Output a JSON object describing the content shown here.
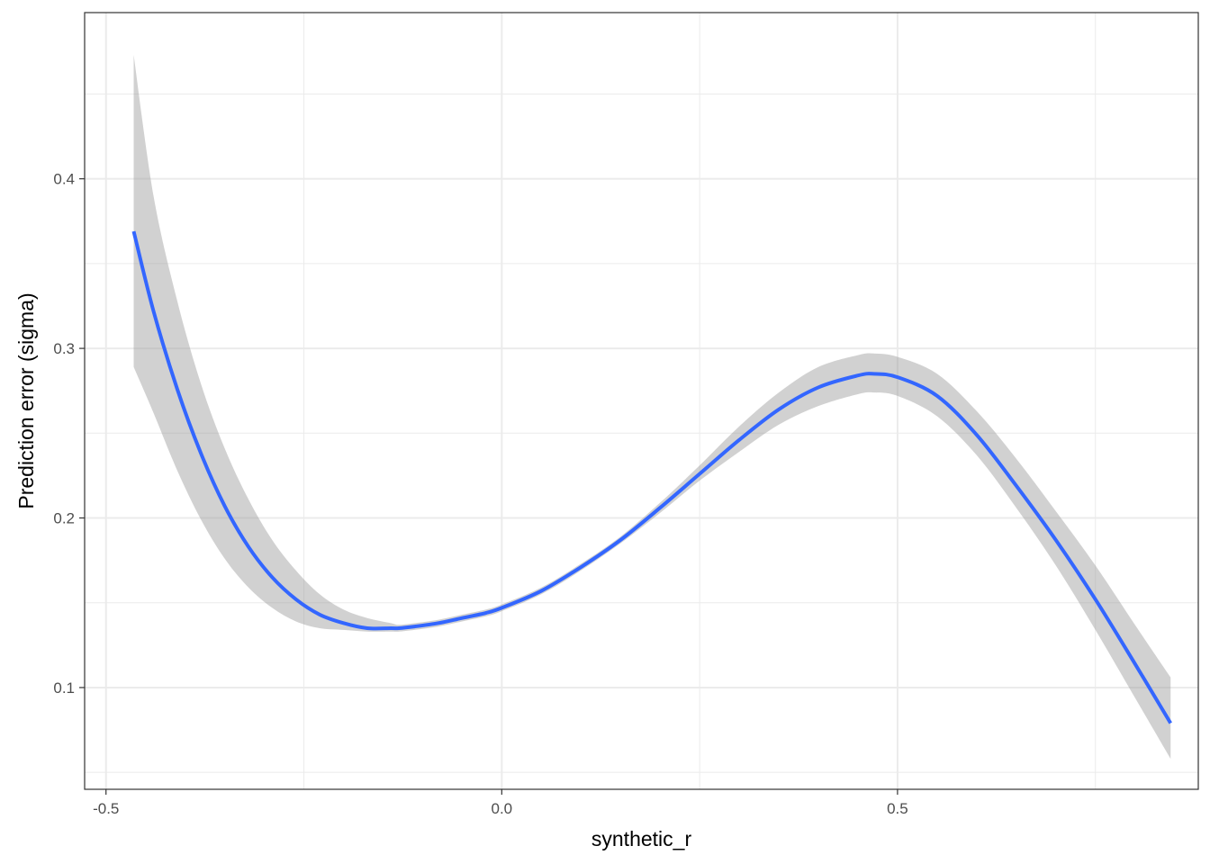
{
  "chart_data": {
    "type": "line",
    "xlabel": "synthetic_r",
    "ylabel": "Prediction error (sigma)",
    "xlim": [
      -0.527,
      0.88
    ],
    "ylim": [
      0.04,
      0.498
    ],
    "x_ticks": [
      -0.5,
      0.0,
      0.5
    ],
    "x_tick_labels": [
      "-0.5",
      "0.0",
      "0.5"
    ],
    "x_minor_ticks": [
      -0.25,
      0.25,
      0.75
    ],
    "y_ticks": [
      0.1,
      0.2,
      0.3,
      0.4
    ],
    "y_tick_labels": [
      "0.1",
      "0.2",
      "0.3",
      "0.4"
    ],
    "y_minor_ticks": [
      0.05,
      0.15,
      0.25,
      0.35,
      0.45
    ],
    "grid": true,
    "legend": "none",
    "colors": {
      "line": "#3366FF",
      "ribbon": "#999999",
      "grid": "#ebebeb",
      "panel_border": "#333333"
    },
    "series": [
      {
        "x": [
          -0.465,
          -0.44,
          -0.41,
          -0.38,
          -0.35,
          -0.32,
          -0.29,
          -0.26,
          -0.23,
          -0.2,
          -0.17,
          -0.14,
          -0.13,
          -0.11,
          -0.08,
          -0.05,
          -0.02,
          0.0,
          0.05,
          0.1,
          0.15,
          0.2,
          0.25,
          0.3,
          0.35,
          0.4,
          0.45,
          0.47,
          0.5,
          0.55,
          0.6,
          0.65,
          0.7,
          0.75,
          0.8,
          0.845
        ],
        "y": [
          0.369,
          0.322,
          0.276,
          0.238,
          0.207,
          0.183,
          0.165,
          0.152,
          0.143,
          0.138,
          0.135,
          0.135,
          0.135,
          0.136,
          0.138,
          0.141,
          0.144,
          0.147,
          0.157,
          0.171,
          0.187,
          0.206,
          0.226,
          0.246,
          0.264,
          0.277,
          0.284,
          0.285,
          0.283,
          0.272,
          0.249,
          0.219,
          0.187,
          0.152,
          0.114,
          0.079
        ],
        "ymin": [
          0.289,
          0.262,
          0.228,
          0.199,
          0.176,
          0.159,
          0.147,
          0.139,
          0.135,
          0.134,
          0.133,
          0.133,
          0.133,
          0.134,
          0.136,
          0.139,
          0.142,
          0.145,
          0.155,
          0.169,
          0.185,
          0.203,
          0.222,
          0.239,
          0.255,
          0.266,
          0.273,
          0.274,
          0.272,
          0.26,
          0.237,
          0.206,
          0.172,
          0.134,
          0.094,
          0.058
        ],
        "ymax": [
          0.473,
          0.39,
          0.328,
          0.279,
          0.241,
          0.211,
          0.187,
          0.169,
          0.155,
          0.146,
          0.141,
          0.138,
          0.137,
          0.138,
          0.14,
          0.143,
          0.146,
          0.149,
          0.159,
          0.173,
          0.189,
          0.209,
          0.231,
          0.254,
          0.274,
          0.289,
          0.296,
          0.297,
          0.295,
          0.285,
          0.263,
          0.235,
          0.204,
          0.172,
          0.137,
          0.106
        ]
      }
    ]
  }
}
